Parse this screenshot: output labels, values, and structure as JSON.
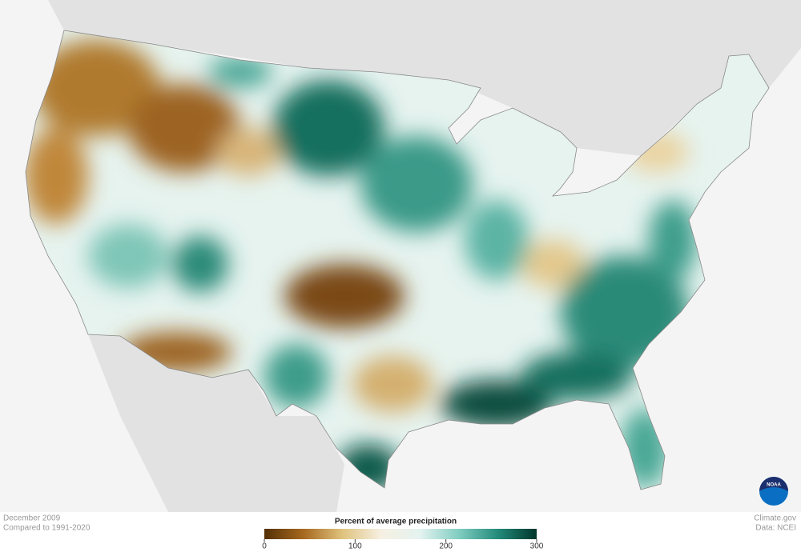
{
  "map": {
    "title": "Percent of average precipitation",
    "date": "December 2009",
    "baseline": "Compared to 1991-2020",
    "colorbar": {
      "range": [
        0,
        300
      ],
      "ticks": [
        0,
        100,
        200,
        300
      ],
      "colors": [
        "#543005",
        "#a6681f",
        "#dfc27d",
        "#f6f0e2",
        "#e4f3f0",
        "#80cdc1",
        "#238b7a",
        "#00362c"
      ]
    },
    "credit": "Climate.gov",
    "source": "Data: NCEI",
    "logo": "NOAA"
  }
}
